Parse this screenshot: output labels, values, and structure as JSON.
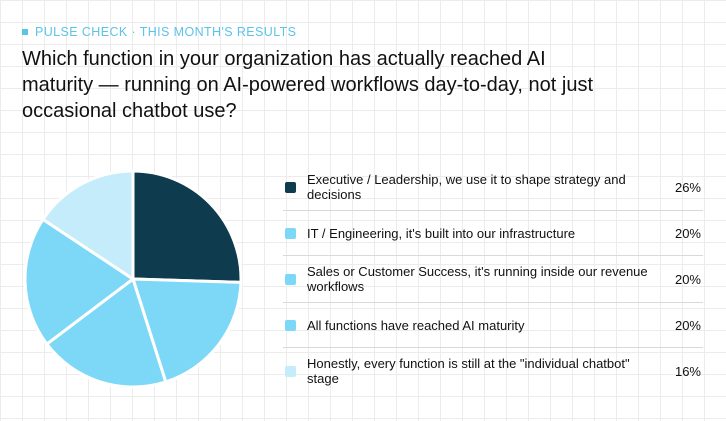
{
  "header": {
    "eyebrow": "PULSE CHECK · THIS MONTH'S RESULTS",
    "question": "Which function in your organization has actually reached AI maturity — running on AI-powered workflows day-to-day, not just occasional chatbot use?"
  },
  "colors": {
    "accent": "#5cc3e8",
    "slice_border": "#ffffff"
  },
  "chart_data": {
    "type": "pie",
    "title": "",
    "start_angle": "12 o'clock, clockwise",
    "legend_position": "right",
    "slices": [
      {
        "label": "Executive / Leadership, we use it to shape strategy and decisions",
        "value": 26,
        "display": "26%",
        "color": "#0f3b4f"
      },
      {
        "label": "IT / Engineering, it's built into our infrastructure",
        "value": 20,
        "display": "20%",
        "color": "#7dd8f7"
      },
      {
        "label": "Sales or Customer Success, it's running inside our revenue workflows",
        "value": 20,
        "display": "20%",
        "color": "#7dd8f7"
      },
      {
        "label": "All functions have reached AI maturity",
        "value": 20,
        "display": "20%",
        "color": "#7dd8f7"
      },
      {
        "label": "Honestly, every function is still at the \"individual chatbot\" stage",
        "value": 16,
        "display": "16%",
        "color": "#c5ecfb"
      }
    ]
  }
}
